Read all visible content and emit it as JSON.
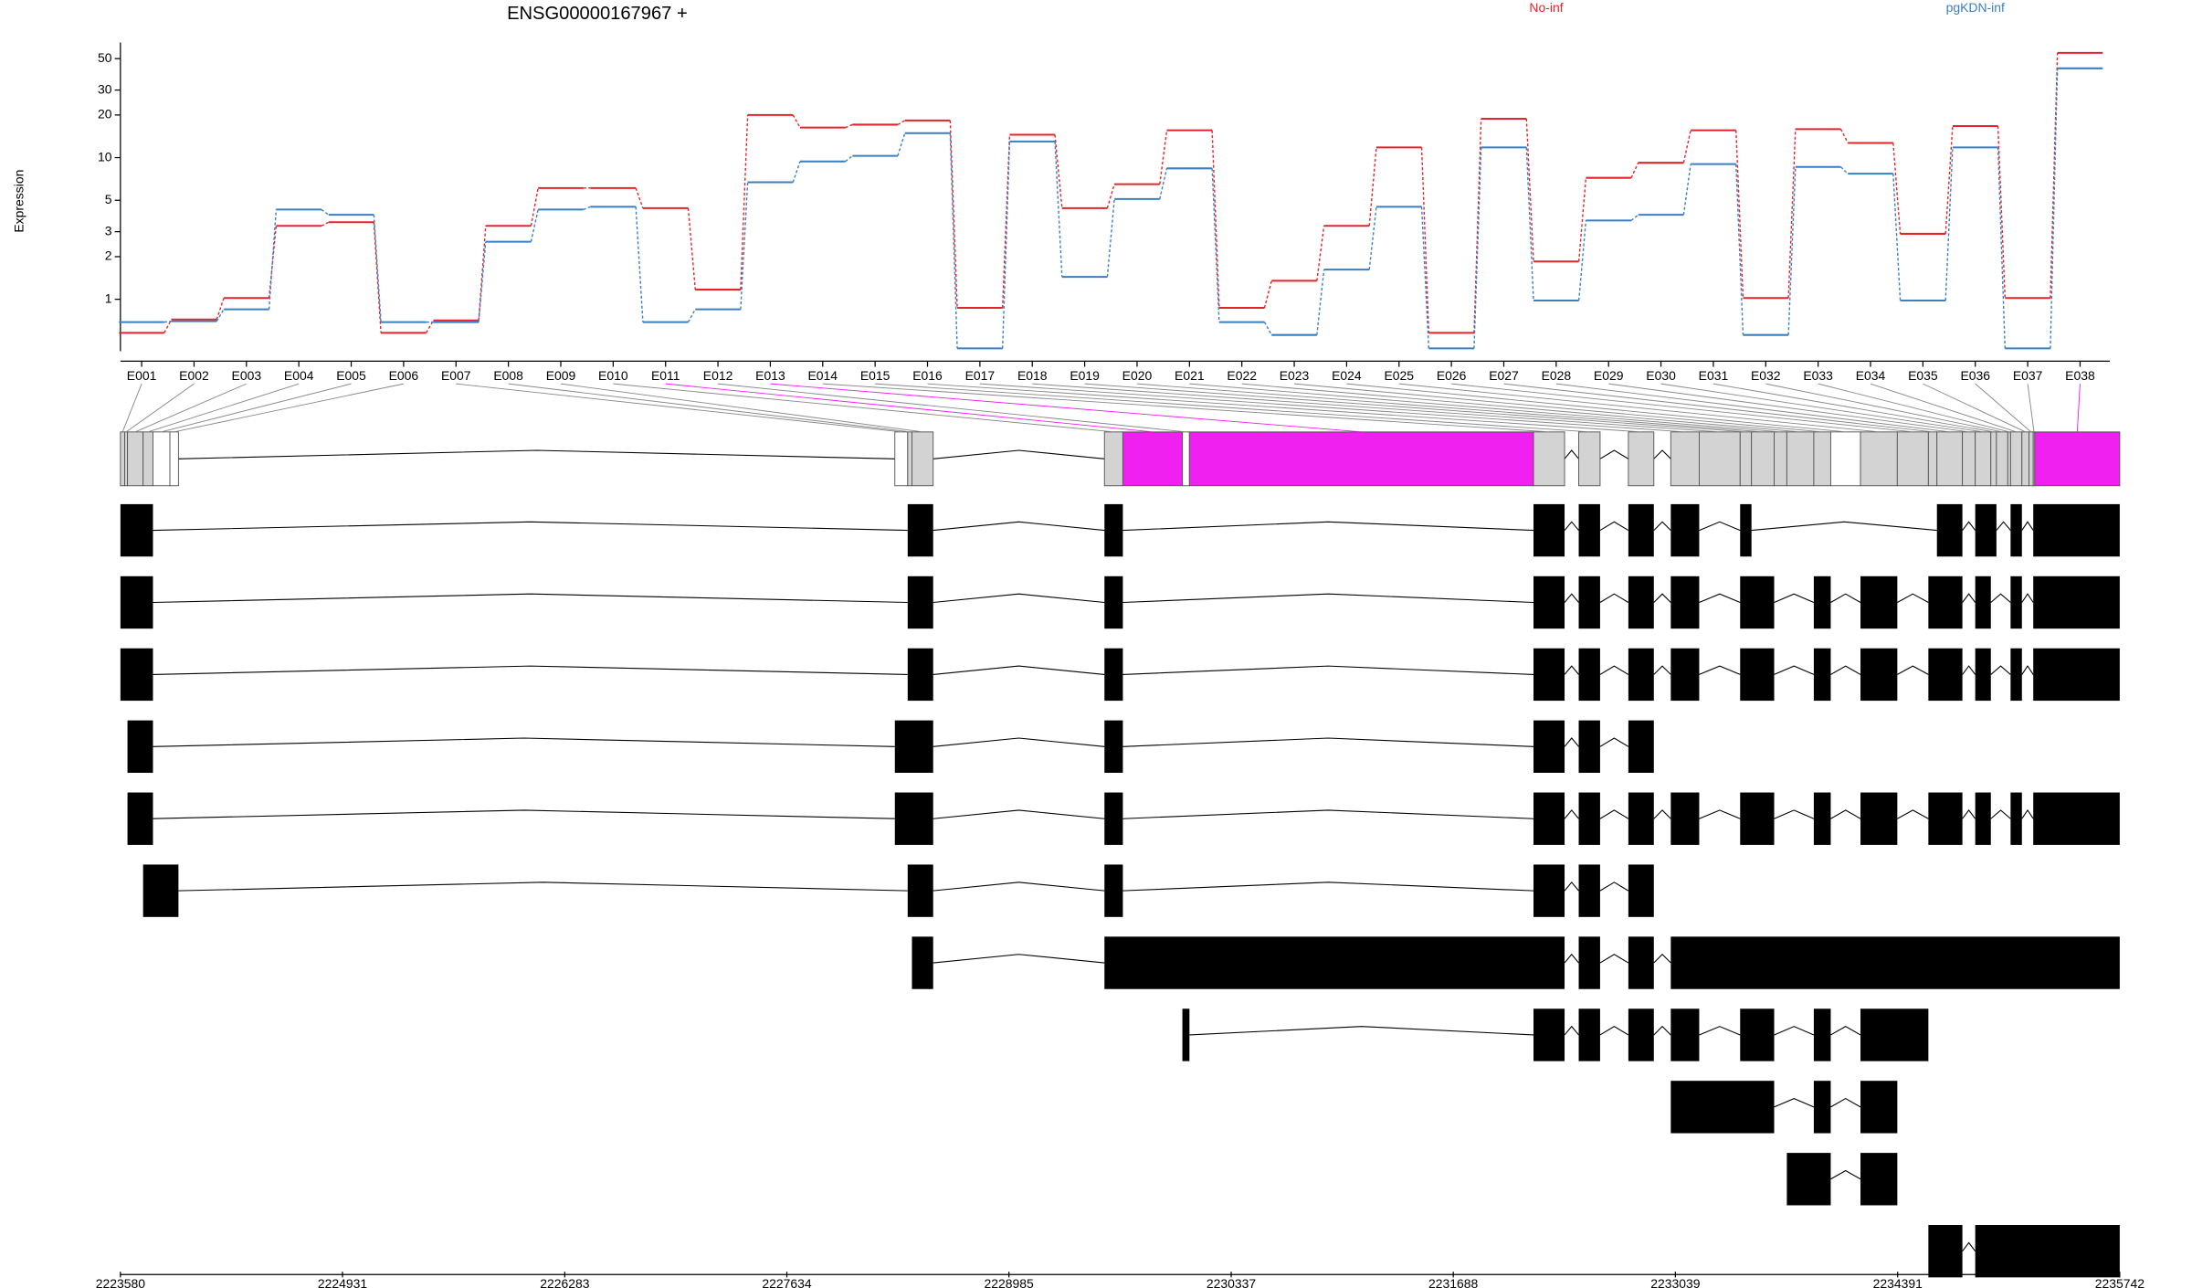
{
  "chart_data": {
    "type": "step",
    "title": "ENSG00000167967 +",
    "ylabel": "Expression",
    "log_scale": "y",
    "legend": "top",
    "categories": [
      "E001",
      "E002",
      "E003",
      "E004",
      "E005",
      "E006",
      "E007",
      "E008",
      "E009",
      "E010",
      "E011",
      "E012",
      "E013",
      "E014",
      "E015",
      "E016",
      "E017",
      "E018",
      "E019",
      "E020",
      "E021",
      "E022",
      "E023",
      "E024",
      "E025",
      "E026",
      "E027",
      "E028",
      "E029",
      "E030",
      "E031",
      "E032",
      "E033",
      "E034",
      "E035",
      "E036",
      "E037",
      "E038"
    ],
    "series": [
      {
        "name": "No-inf",
        "color": "#e3242b",
        "values": [
          0.58,
          0.72,
          1.02,
          3.3,
          3.5,
          0.58,
          0.71,
          3.3,
          6.1,
          6.1,
          4.4,
          1.17,
          20,
          16.3,
          17.1,
          18.3,
          0.87,
          14.5,
          4.4,
          6.5,
          15.6,
          0.87,
          1.35,
          3.3,
          11.8,
          0.58,
          18.8,
          1.85,
          7.2,
          9.2,
          15.6,
          1.02,
          15.9,
          12.7,
          2.9,
          16.7,
          1.02,
          54.9
        ]
      },
      {
        "name": "pgKDN-inf",
        "color": "#3a7fc1",
        "values": [
          0.69,
          0.7,
          0.85,
          4.3,
          3.95,
          0.69,
          0.69,
          2.55,
          4.3,
          4.5,
          0.69,
          0.85,
          6.7,
          9.4,
          10.3,
          14.9,
          0.45,
          13.0,
          1.44,
          5.1,
          8.4,
          0.69,
          0.56,
          1.62,
          4.5,
          0.45,
          11.8,
          0.98,
          3.6,
          3.95,
          9.0,
          0.56,
          8.6,
          7.7,
          0.98,
          11.8,
          0.45,
          42.7
        ]
      }
    ],
    "ylim": [
      0.43,
      65
    ],
    "yticks": [
      1,
      2,
      3,
      5,
      10,
      20,
      30,
      50
    ],
    "xlim": [
      2223580,
      2235742
    ],
    "xticks": [
      2223580,
      2224931,
      2226283,
      2227634,
      2228985,
      2230337,
      2231688,
      2233039,
      2234391,
      2235742
    ],
    "exons": [
      [
        2223580,
        2223606
      ],
      [
        2223606,
        2223623
      ],
      [
        2223623,
        2223718
      ],
      [
        2223718,
        2223778
      ],
      [
        2223778,
        2223881
      ],
      [
        2223881,
        2223933
      ],
      [
        2228291,
        2228369
      ],
      [
        2228369,
        2228395
      ],
      [
        2228395,
        2228524
      ],
      [
        2229566,
        2229678
      ],
      [
        2229678,
        2230040
      ],
      [
        2230040,
        2230083
      ],
      [
        2230083,
        2232176
      ],
      [
        2232176,
        2232365
      ],
      [
        2232451,
        2232581
      ],
      [
        2232753,
        2232908
      ],
      [
        2233011,
        2233184
      ],
      [
        2233184,
        2233433
      ],
      [
        2233433,
        2233502
      ],
      [
        2233502,
        2233640
      ],
      [
        2233640,
        2233717
      ],
      [
        2233717,
        2233881
      ],
      [
        2233881,
        2233984
      ],
      [
        2233984,
        2234165
      ],
      [
        2234165,
        2234389
      ],
      [
        2234389,
        2234578
      ],
      [
        2234578,
        2234630
      ],
      [
        2234630,
        2234785
      ],
      [
        2234785,
        2234863
      ],
      [
        2234863,
        2234958
      ],
      [
        2234958,
        2234992
      ],
      [
        2234992,
        2235061
      ],
      [
        2235061,
        2235078
      ],
      [
        2235078,
        2235147
      ],
      [
        2235147,
        2235190
      ],
      [
        2235190,
        2235216
      ],
      [
        2235216,
        2235225
      ],
      [
        2235225,
        2235742
      ]
    ],
    "exon_colors": [
      "#d3d3d3",
      "#d3d3d3",
      "#d3d3d3",
      "#d3d3d3",
      "#ffffff",
      "#ffffff",
      "#ffffff",
      "#d3d3d3",
      "#d3d3d3",
      "#d3d3d3",
      "#f020f0",
      "#ffffff",
      "#f020f0",
      "#d3d3d3",
      "#d3d3d3",
      "#d3d3d3",
      "#d3d3d3",
      "#d3d3d3",
      "#d3d3d3",
      "#d3d3d3",
      "#d3d3d3",
      "#d3d3d3",
      "#d3d3d3",
      "#ffffff",
      "#d3d3d3",
      "#d3d3d3",
      "#d3d3d3",
      "#d3d3d3",
      "#d3d3d3",
      "#d3d3d3",
      "#d3d3d3",
      "#d3d3d3",
      "#d3d3d3",
      "#d3d3d3",
      "#d3d3d3",
      "#d3d3d3",
      "#d3d3d3",
      "#f020f0"
    ],
    "transcripts": [
      [
        [
          0,
          3
        ],
        [
          7,
          8
        ],
        [
          9,
          9
        ],
        [
          13,
          13
        ],
        [
          14,
          14
        ],
        [
          15,
          15
        ],
        [
          16,
          16
        ],
        [
          18,
          18
        ],
        [
          27,
          27
        ],
        [
          29,
          30
        ],
        [
          33,
          33
        ],
        [
          36,
          37
        ]
      ],
      [
        [
          0,
          3
        ],
        [
          7,
          8
        ],
        [
          9,
          9
        ],
        [
          13,
          13
        ],
        [
          14,
          14
        ],
        [
          15,
          15
        ],
        [
          16,
          16
        ],
        [
          18,
          19
        ],
        [
          22,
          22
        ],
        [
          24,
          24
        ],
        [
          26,
          27
        ],
        [
          29,
          29
        ],
        [
          33,
          33
        ],
        [
          36,
          37
        ]
      ],
      [
        [
          0,
          3
        ],
        [
          7,
          8
        ],
        [
          9,
          9
        ],
        [
          13,
          13
        ],
        [
          14,
          14
        ],
        [
          15,
          15
        ],
        [
          16,
          16
        ],
        [
          18,
          19
        ],
        [
          22,
          22
        ],
        [
          24,
          24
        ],
        [
          26,
          27
        ],
        [
          29,
          29
        ],
        [
          33,
          33
        ],
        [
          36,
          37
        ]
      ],
      [
        [
          2,
          3
        ],
        [
          6,
          8
        ],
        [
          9,
          9
        ],
        [
          13,
          13
        ],
        [
          14,
          14
        ],
        [
          15,
          15
        ]
      ],
      [
        [
          2,
          3
        ],
        [
          6,
          8
        ],
        [
          9,
          9
        ],
        [
          13,
          13
        ],
        [
          14,
          14
        ],
        [
          15,
          15
        ],
        [
          16,
          16
        ],
        [
          18,
          19
        ],
        [
          22,
          22
        ],
        [
          24,
          24
        ],
        [
          26,
          27
        ],
        [
          29,
          29
        ],
        [
          33,
          33
        ],
        [
          36,
          37
        ]
      ],
      [
        [
          3,
          5
        ],
        [
          7,
          8
        ],
        [
          9,
          9
        ],
        [
          13,
          13
        ],
        [
          14,
          14
        ],
        [
          15,
          15
        ]
      ],
      [
        [
          8,
          8
        ],
        [
          9,
          13
        ],
        [
          14,
          14
        ],
        [
          15,
          15
        ],
        [
          16,
          37
        ]
      ],
      [
        [
          11,
          11
        ],
        [
          13,
          13
        ],
        [
          14,
          14
        ],
        [
          15,
          15
        ],
        [
          16,
          16
        ],
        [
          18,
          19
        ],
        [
          22,
          22
        ],
        [
          24,
          25
        ]
      ],
      [
        [
          16,
          19
        ],
        [
          22,
          22
        ],
        [
          24,
          24
        ]
      ],
      [
        [
          21,
          22
        ],
        [
          24,
          24
        ]
      ],
      [
        [
          26,
          27
        ],
        [
          29,
          37
        ]
      ]
    ]
  }
}
